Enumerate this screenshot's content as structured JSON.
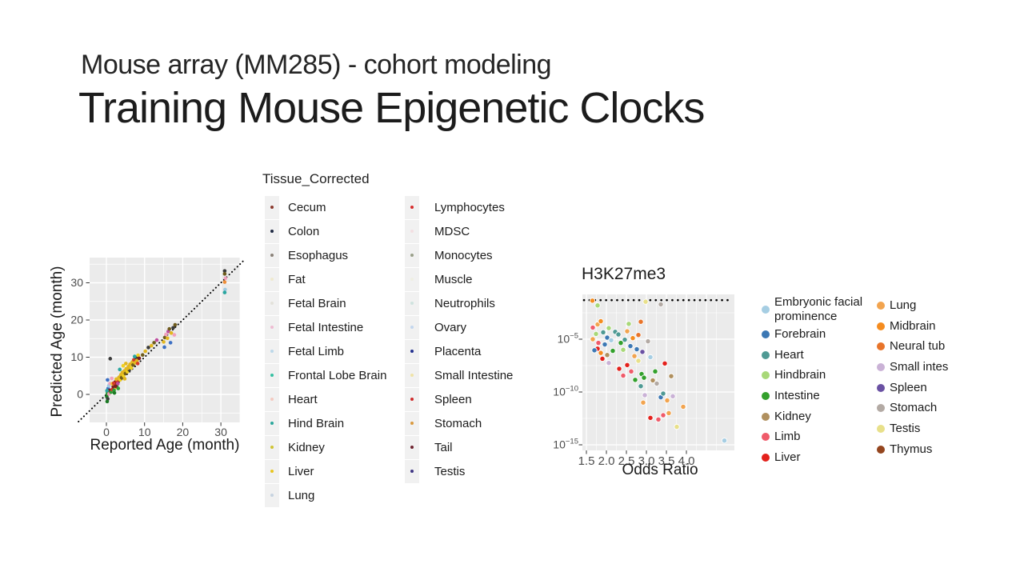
{
  "slide": {
    "subtitle": "Mouse array (MM285) - cohort modeling",
    "title": "Training Mouse Epigenetic Clocks"
  },
  "tissue_legend": {
    "title": "Tissue_Corrected",
    "columns": [
      [
        {
          "label": "Cecum",
          "color": "#8b3a2e"
        },
        {
          "label": "Colon",
          "color": "#1f2a44"
        },
        {
          "label": "Esophagus",
          "color": "#8a8178"
        },
        {
          "label": "Fat",
          "color": "#efe9cf"
        },
        {
          "label": "Fetal Brain",
          "color": "#e3e2da"
        },
        {
          "label": "Fetal Intestine",
          "color": "#eebcd2"
        },
        {
          "label": "Fetal Limb",
          "color": "#bcd8ea"
        },
        {
          "label": "Frontal Lobe Brain",
          "color": "#35c0a2"
        },
        {
          "label": "Heart",
          "color": "#f3cac1"
        },
        {
          "label": "Hind Brain",
          "color": "#2aa79b"
        },
        {
          "label": "Kidney",
          "color": "#cfc433"
        },
        {
          "label": "Liver",
          "color": "#e8c51f"
        },
        {
          "label": "Lung",
          "color": "#c7d3e0"
        }
      ],
      [
        {
          "label": "Lymphocytes",
          "color": "#d62d2d"
        },
        {
          "label": "MDSC",
          "color": "#f2dfe2"
        },
        {
          "label": "Monocytes",
          "color": "#9aa08a"
        },
        {
          "label": "Muscle",
          "color": "#efefe3"
        },
        {
          "label": "Neutrophils",
          "color": "#cfe3df"
        },
        {
          "label": "Ovary",
          "color": "#c3d6ee"
        },
        {
          "label": "Placenta",
          "color": "#23308f"
        },
        {
          "label": "Small Intestine",
          "color": "#efe3a8"
        },
        {
          "label": "Spleen",
          "color": "#cf2b2b"
        },
        {
          "label": "Stomach",
          "color": "#d99a3f"
        },
        {
          "label": "Tail",
          "color": "#6e2430"
        },
        {
          "label": "Testis",
          "color": "#3f3684"
        }
      ]
    ]
  },
  "or_legend": {
    "columns": [
      [
        {
          "label": "Embryonic facial prominence",
          "color": "#a6cee3"
        },
        {
          "label": "Forebrain",
          "color": "#3c78b4"
        },
        {
          "label": "Heart",
          "color": "#4f9a94"
        },
        {
          "label": "Hindbrain",
          "color": "#a8d878"
        },
        {
          "label": "Intestine",
          "color": "#33a02c"
        },
        {
          "label": "Kidney",
          "color": "#b0905f"
        },
        {
          "label": "Limb",
          "color": "#ef5b6a"
        },
        {
          "label": "Liver",
          "color": "#e3211c"
        }
      ],
      [
        {
          "label": "Lung",
          "color": "#f2a44f"
        },
        {
          "label": "Midbrain",
          "color": "#f58c1f"
        },
        {
          "label": "Neural tub",
          "color": "#e8742a"
        },
        {
          "label": "Small intes",
          "color": "#cab2d6"
        },
        {
          "label": "Spleen",
          "color": "#6a51a3"
        },
        {
          "label": "Stomach",
          "color": "#b3aaa4"
        },
        {
          "label": "Testis",
          "color": "#e8e08a"
        },
        {
          "label": "Thymus",
          "color": "#94451e"
        }
      ]
    ]
  },
  "chart_data": [
    {
      "type": "scatter",
      "title": "",
      "xlabel": "Reported Age (month)",
      "ylabel": "Predicted Age (month)",
      "x_ticks": [
        0,
        10,
        20,
        30
      ],
      "y_ticks": [
        0,
        10,
        20,
        30
      ],
      "xlim": [
        -4.4,
        35
      ],
      "ylim": [
        -7.5,
        36.8
      ],
      "identity_line": true,
      "grid": true,
      "palette": {
        "gold": "#e2b71f",
        "yellow": "#f0d01f",
        "olive": "#6e5b1c",
        "green": "#2f9e37",
        "dgreen": "#1c7a24",
        "red": "#d43a2a",
        "dred": "#7a1f1f",
        "blue": "#3b6fc4",
        "lblue": "#9ec9e2",
        "teal": "#2aa6a0",
        "pink": "#f2a0bd",
        "magenta": "#bf4fa0",
        "dark": "#3a3a3a",
        "orange": "#ef8f3a"
      },
      "points": [
        [
          0.1,
          -0.6,
          "dgreen"
        ],
        [
          0.25,
          0.3,
          "green"
        ],
        [
          0.35,
          -1.2,
          "dark"
        ],
        [
          0.5,
          0.9,
          "red"
        ],
        [
          0.45,
          1.6,
          "blue"
        ],
        [
          0.6,
          2.3,
          "lblue"
        ],
        [
          0.7,
          0.1,
          "pink"
        ],
        [
          0.2,
          -1.9,
          "dgreen"
        ],
        [
          0.8,
          1.1,
          "dred"
        ],
        [
          0.3,
          3.9,
          "blue"
        ],
        [
          0.95,
          2.9,
          "pink"
        ],
        [
          0.15,
          1.0,
          "teal"
        ],
        [
          1.2,
          0.6,
          "green"
        ],
        [
          1.5,
          1.3,
          "red"
        ],
        [
          1.8,
          2.1,
          "dred"
        ],
        [
          2.0,
          1.1,
          "green"
        ],
        [
          2.2,
          2.6,
          "red"
        ],
        [
          2.5,
          1.9,
          "gold"
        ],
        [
          2.3,
          3.3,
          "dred"
        ],
        [
          2.7,
          2.3,
          "green"
        ],
        [
          1.6,
          2.9,
          "yellow"
        ],
        [
          2.1,
          0.4,
          "dgreen"
        ],
        [
          2.8,
          3.6,
          "red"
        ],
        [
          3.0,
          2.9,
          "magenta"
        ],
        [
          1.4,
          4.3,
          "pink"
        ],
        [
          2.6,
          4.1,
          "gold"
        ],
        [
          3.1,
          1.6,
          "green"
        ],
        [
          1.0,
          9.6,
          "dark"
        ],
        [
          1.9,
          3.0,
          "red"
        ],
        [
          2.4,
          2.2,
          "dred"
        ],
        [
          3.3,
          4.6,
          "gold"
        ],
        [
          3.6,
          3.9,
          "yellow"
        ],
        [
          3.8,
          5.3,
          "gold"
        ],
        [
          4.0,
          4.5,
          "olive"
        ],
        [
          4.2,
          5.9,
          "gold"
        ],
        [
          4.5,
          5.0,
          "yellow"
        ],
        [
          4.7,
          6.3,
          "gold"
        ],
        [
          5.0,
          5.6,
          "olive"
        ],
        [
          5.2,
          6.9,
          "gold"
        ],
        [
          5.5,
          6.1,
          "yellow"
        ],
        [
          5.8,
          7.5,
          "gold"
        ],
        [
          6.0,
          6.6,
          "dark"
        ],
        [
          6.2,
          8.1,
          "gold"
        ],
        [
          6.5,
          7.1,
          "yellow"
        ],
        [
          4.4,
          7.7,
          "yellow"
        ],
        [
          5.1,
          8.3,
          "gold"
        ],
        [
          3.5,
          6.7,
          "teal"
        ],
        [
          4.8,
          4.2,
          "gold"
        ],
        [
          5.6,
          7.0,
          "gold"
        ],
        [
          6.8,
          8.7,
          "gold"
        ],
        [
          7.0,
          7.9,
          "olive"
        ],
        [
          7.2,
          9.3,
          "red"
        ],
        [
          7.5,
          8.5,
          "gold"
        ],
        [
          7.8,
          9.9,
          "dark"
        ],
        [
          8.0,
          9.1,
          "gold"
        ],
        [
          8.3,
          10.5,
          "yellow"
        ],
        [
          8.6,
          9.7,
          "dred"
        ],
        [
          8.2,
          8.3,
          "red"
        ],
        [
          7.4,
          10.2,
          "teal"
        ],
        [
          9.5,
          10.6,
          "olive"
        ],
        [
          10.2,
          11.6,
          "gold"
        ],
        [
          11.0,
          12.6,
          "dark"
        ],
        [
          11.8,
          13.1,
          "gold"
        ],
        [
          12.5,
          13.9,
          "olive"
        ],
        [
          13.2,
          14.6,
          "magenta"
        ],
        [
          15.0,
          14.1,
          "gold"
        ],
        [
          15.3,
          15.3,
          "olive"
        ],
        [
          15.6,
          16.1,
          "pink"
        ],
        [
          16.0,
          15.1,
          "gold"
        ],
        [
          16.2,
          16.9,
          "magenta"
        ],
        [
          16.5,
          17.6,
          "olive"
        ],
        [
          17.0,
          16.5,
          "gold"
        ],
        [
          17.5,
          17.9,
          "dark"
        ],
        [
          18.0,
          18.7,
          "olive"
        ],
        [
          15.2,
          12.7,
          "blue"
        ],
        [
          16.8,
          13.9,
          "blue"
        ],
        [
          17.8,
          16.0,
          "pink"
        ],
        [
          31.0,
          33.2,
          "dark"
        ],
        [
          31.0,
          32.4,
          "olive"
        ],
        [
          31.2,
          31.2,
          "pink"
        ],
        [
          31.0,
          30.2,
          "orange"
        ],
        [
          31.1,
          28.2,
          "lblue"
        ],
        [
          31.0,
          27.4,
          "teal"
        ]
      ]
    },
    {
      "type": "scatter",
      "title": "H3K27me3",
      "xlabel": "Odds Ratio",
      "ylabel": "",
      "x_tick_labels": [
        "1.5",
        "2.0",
        "2.5",
        "3.0",
        "3.5",
        "4.0"
      ],
      "y_tick_exponents": [
        -5,
        -10,
        -15
      ],
      "xlim": [
        1.46,
        5.14
      ],
      "ylim_exponents": [
        -15.5,
        -0.8
      ],
      "threshold_line_exponent": -1.3,
      "grid": true,
      "palette": {
        "efp": "#a6cee3",
        "forebrain": "#3c78b4",
        "heart": "#4f9a94",
        "hindbrain": "#a8d878",
        "intestine": "#33a02c",
        "kidney": "#b0905f",
        "limb": "#ef5b6a",
        "liver": "#e3211c",
        "lung": "#f2a44f",
        "midbrain": "#f58c1f",
        "neuraltube": "#e8742a",
        "smallint": "#cab2d6",
        "spleen": "#6a51a3",
        "stomach": "#b3aaa4",
        "testis": "#e8e08a",
        "thymus": "#94451e"
      },
      "points": [
        [
          1.65,
          -1.35,
          "midbrain"
        ],
        [
          1.78,
          -1.8,
          "hindbrain"
        ],
        [
          2.98,
          -1.45,
          "testis"
        ],
        [
          3.36,
          -1.7,
          "stomach"
        ],
        [
          1.66,
          -3.9,
          "limb"
        ],
        [
          1.78,
          -3.6,
          "lung"
        ],
        [
          1.86,
          -3.3,
          "midbrain"
        ],
        [
          1.74,
          -4.5,
          "hindbrain"
        ],
        [
          1.66,
          -5.0,
          "lung"
        ],
        [
          1.8,
          -5.35,
          "limb"
        ],
        [
          1.92,
          -4.35,
          "heart"
        ],
        [
          1.78,
          -5.9,
          "liver"
        ],
        [
          1.86,
          -6.3,
          "midbrain"
        ],
        [
          1.7,
          -6.05,
          "forebrain"
        ],
        [
          1.96,
          -5.5,
          "forebrain"
        ],
        [
          2.02,
          -4.85,
          "forebrain"
        ],
        [
          2.06,
          -3.95,
          "hindbrain"
        ],
        [
          2.12,
          -5.1,
          "efp"
        ],
        [
          1.9,
          -6.85,
          "liver"
        ],
        [
          2.02,
          -6.5,
          "kidney"
        ],
        [
          2.16,
          -6.1,
          "intestine"
        ],
        [
          2.22,
          -4.3,
          "heart"
        ],
        [
          2.06,
          -7.25,
          "smallint"
        ],
        [
          2.3,
          -4.55,
          "heart"
        ],
        [
          2.36,
          -5.35,
          "intestine"
        ],
        [
          2.42,
          -6.0,
          "hindbrain"
        ],
        [
          2.46,
          -5.05,
          "heart"
        ],
        [
          2.52,
          -4.25,
          "lung"
        ],
        [
          2.56,
          -3.55,
          "hindbrain"
        ],
        [
          2.6,
          -5.65,
          "forebrain"
        ],
        [
          2.66,
          -4.9,
          "midbrain"
        ],
        [
          2.32,
          -7.8,
          "liver"
        ],
        [
          2.42,
          -8.45,
          "limb"
        ],
        [
          2.52,
          -7.45,
          "liver"
        ],
        [
          2.62,
          -8.05,
          "limb"
        ],
        [
          2.7,
          -6.6,
          "lung"
        ],
        [
          2.76,
          -5.95,
          "forebrain"
        ],
        [
          2.8,
          -4.6,
          "neuraltube"
        ],
        [
          2.86,
          -3.35,
          "neuraltube"
        ],
        [
          2.72,
          -8.85,
          "intestine"
        ],
        [
          2.8,
          -7.05,
          "testis"
        ],
        [
          2.9,
          -6.2,
          "spleen"
        ],
        [
          2.88,
          -8.3,
          "intestine"
        ],
        [
          2.94,
          -8.65,
          "intestine"
        ],
        [
          2.86,
          -9.45,
          "heart"
        ],
        [
          2.96,
          -10.3,
          "smallint"
        ],
        [
          2.92,
          -11.0,
          "lung"
        ],
        [
          3.04,
          -5.2,
          "stomach"
        ],
        [
          3.1,
          -6.7,
          "efp"
        ],
        [
          3.16,
          -8.9,
          "kidney"
        ],
        [
          3.22,
          -8.05,
          "intestine"
        ],
        [
          3.1,
          -12.45,
          "liver"
        ],
        [
          3.3,
          -12.6,
          "limb"
        ],
        [
          3.26,
          -9.2,
          "stomach"
        ],
        [
          3.36,
          -10.5,
          "forebrain"
        ],
        [
          3.42,
          -10.15,
          "heart"
        ],
        [
          3.46,
          -7.3,
          "liver"
        ],
        [
          3.52,
          -10.8,
          "lung"
        ],
        [
          3.56,
          -12.0,
          "lung"
        ],
        [
          3.42,
          -12.2,
          "limb"
        ],
        [
          3.62,
          -8.5,
          "kidney"
        ],
        [
          3.66,
          -10.4,
          "smallint"
        ],
        [
          3.76,
          -13.3,
          "testis"
        ],
        [
          3.92,
          -11.4,
          "lung"
        ],
        [
          4.95,
          -14.6,
          "efp"
        ]
      ]
    }
  ]
}
